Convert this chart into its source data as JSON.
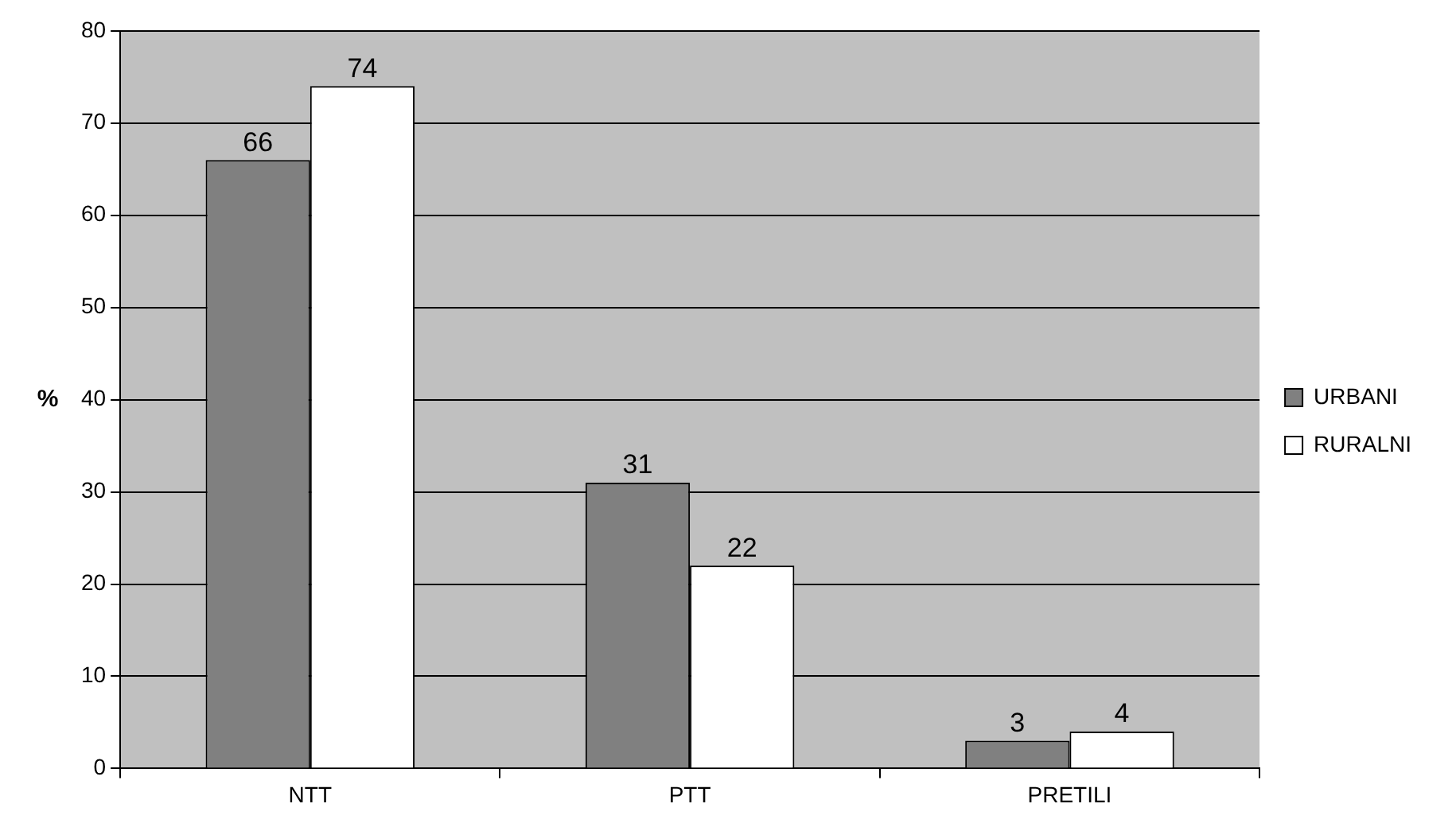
{
  "chart_data": {
    "type": "bar",
    "ylabel": "%",
    "categories": [
      "NTT",
      "PTT",
      "PRETILI"
    ],
    "series": [
      {
        "name": "URBANI",
        "color": "#808080",
        "values": [
          66,
          31,
          3
        ]
      },
      {
        "name": "RURALNI",
        "color": "#ffffff",
        "values": [
          74,
          22,
          4
        ]
      }
    ],
    "ylim": [
      0,
      80
    ],
    "yticks": [
      0,
      10,
      20,
      30,
      40,
      50,
      60,
      70,
      80
    ],
    "grid": "y",
    "legend": "right",
    "data_labels": true
  }
}
